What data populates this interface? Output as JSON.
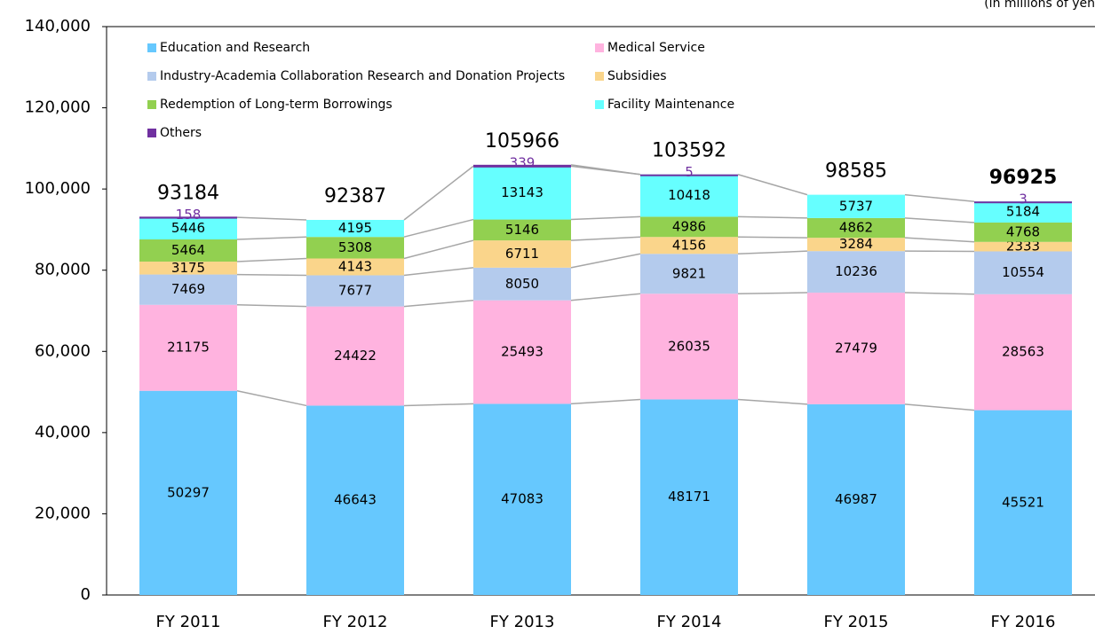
{
  "chart_data": {
    "type": "stacked_bar",
    "unit_note": "(in millions of yen",
    "categories": [
      "FY 2011",
      "FY 2012",
      "FY 2013",
      "FY 2014",
      "FY 2015",
      "FY 2016"
    ],
    "series": [
      {
        "name": "Education and Research",
        "color": "#66c8fe",
        "values": [
          50297,
          46643,
          47083,
          48171,
          46987,
          45521
        ]
      },
      {
        "name": "Medical Service",
        "color": "#ffb3df",
        "values": [
          21175,
          24422,
          25493,
          26035,
          27479,
          28563
        ]
      },
      {
        "name": "Industry-Academia Collaboration Research and Donation Projects",
        "color": "#b4cbed",
        "values": [
          7469,
          7677,
          8050,
          9821,
          10236,
          10554
        ]
      },
      {
        "name": "Subsidies",
        "color": "#fad58b",
        "values": [
          3175,
          4143,
          6711,
          4156,
          3284,
          2333
        ]
      },
      {
        "name": "Redemption of Long-term Borrowings",
        "color": "#92d050",
        "values": [
          5464,
          5308,
          5146,
          4986,
          4862,
          4768
        ]
      },
      {
        "name": "Facility Maintenance",
        "color": "#66ffff",
        "values": [
          5446,
          4195,
          13143,
          10418,
          5737,
          5184
        ]
      },
      {
        "name": "Others",
        "color": "#7030a0",
        "values": [
          158,
          null,
          339,
          5,
          null,
          3
        ]
      }
    ],
    "totals": [
      93184,
      92387,
      105966,
      103592,
      98585,
      96925
    ],
    "ylim": [
      0,
      140000
    ],
    "yticks": [
      0,
      {
        "value": 20000,
        "label": "20,000"
      },
      {
        "value": 40000,
        "label": "40,000"
      },
      {
        "value": 60000,
        "label": "60,000"
      },
      {
        "value": 80000,
        "label": "80,000"
      },
      {
        "value": 100000,
        "label": "100,000"
      },
      {
        "value": 120000,
        "label": "120,000"
      },
      {
        "value": 140000,
        "label": "140,000"
      }
    ]
  }
}
